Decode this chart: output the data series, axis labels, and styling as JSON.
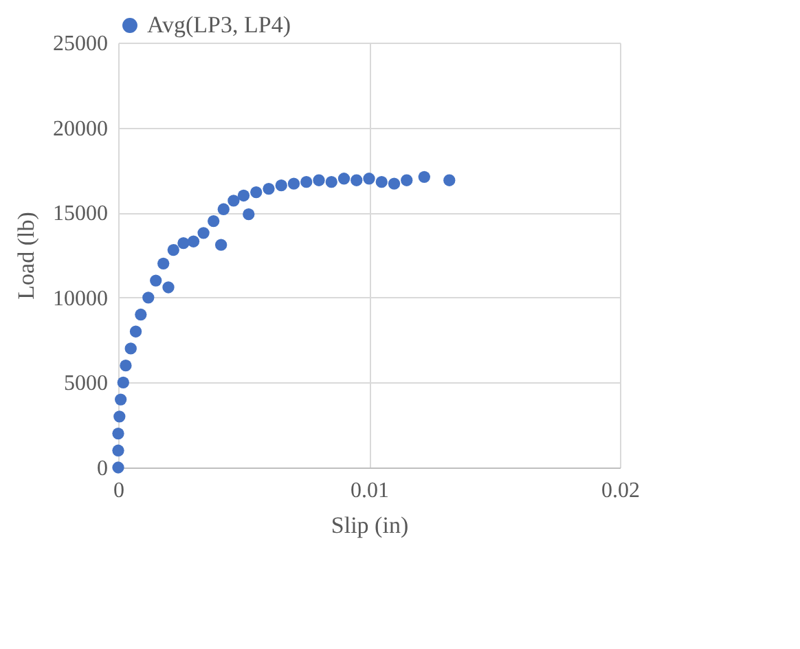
{
  "chart_data": {
    "type": "scatter",
    "xlabel": "Slip (in)",
    "ylabel": "Load (lb)",
    "xlim": [
      0,
      0.02
    ],
    "xticks": [
      0,
      0.01,
      0.02
    ],
    "ylim": [
      0,
      25000
    ],
    "yticks": [
      0,
      5000,
      10000,
      15000,
      20000,
      25000
    ],
    "grid": true,
    "legend": "top",
    "marker": "circle",
    "series": [
      {
        "name": "Avg(LP3, LP4)",
        "color": "#4472c4",
        "x": [
          0,
          0,
          0,
          5e-05,
          0.0001,
          0.0002,
          0.0003,
          0.0005,
          0.0007,
          0.0009,
          0.0012,
          0.0015,
          0.0018,
          0.002,
          0.0022,
          0.0026,
          0.003,
          0.0034,
          0.0038,
          0.0041,
          0.0042,
          0.0046,
          0.005,
          0.0052,
          0.0055,
          0.006,
          0.0065,
          0.007,
          0.0075,
          0.008,
          0.0085,
          0.009,
          0.0095,
          0.01,
          0.0105,
          0.011,
          0.0115,
          0.0122,
          0.0132
        ],
        "values": [
          0,
          1000,
          2000,
          3000,
          4000,
          5000,
          6000,
          7000,
          8000,
          9000,
          10000,
          11000,
          12000,
          10600,
          12800,
          13200,
          13300,
          13800,
          14500,
          13100,
          15200,
          15700,
          16000,
          14900,
          16200,
          16400,
          16600,
          16700,
          16800,
          16900,
          16800,
          17000,
          16900,
          17000,
          16800,
          16700,
          16900,
          17100,
          16900
        ]
      }
    ]
  }
}
